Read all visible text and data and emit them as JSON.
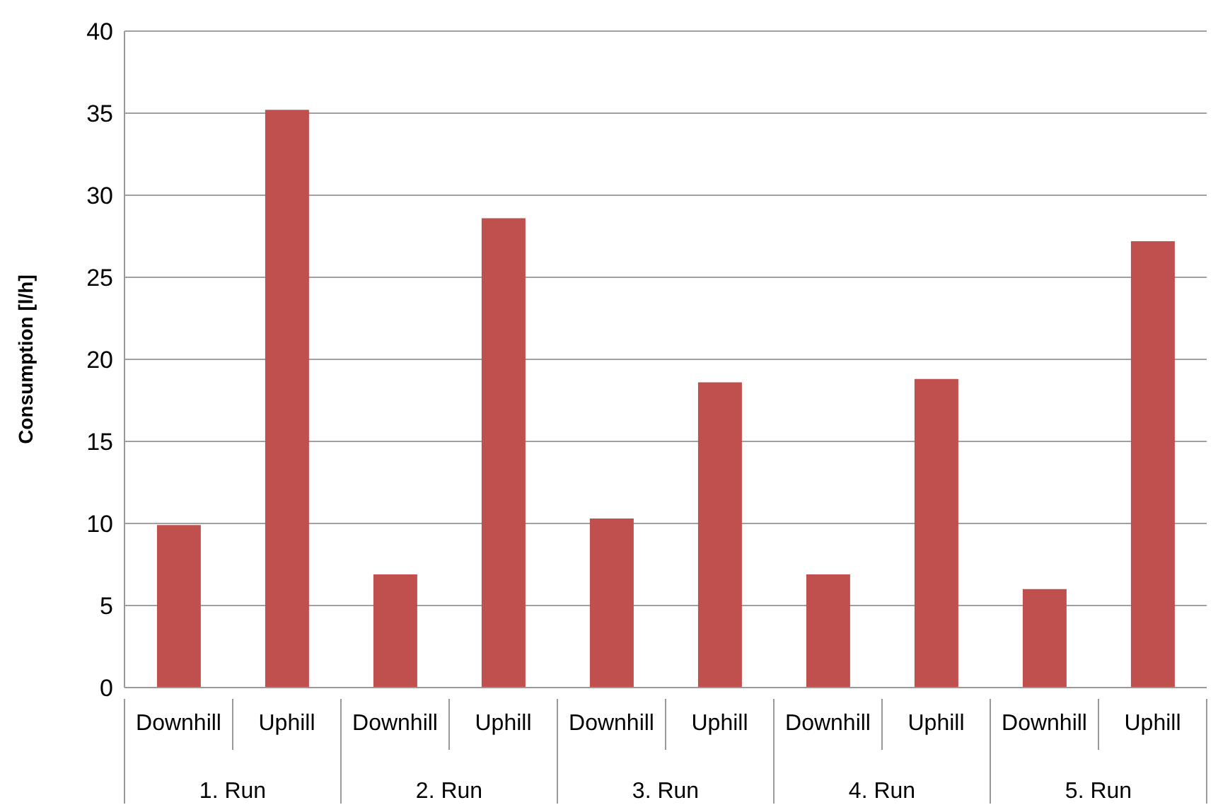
{
  "chart_data": {
    "type": "bar",
    "ylabel": "Consumption [l/h]",
    "categories": [
      "Downhill",
      "Uphill",
      "Downhill",
      "Uphill",
      "Downhill",
      "Uphill",
      "Downhill",
      "Uphill",
      "Downhill",
      "Uphill"
    ],
    "values": [
      9.9,
      35.2,
      6.9,
      28.6,
      10.3,
      18.6,
      6.9,
      18.8,
      6.0,
      27.2
    ],
    "color": "#c0504d",
    "ylim": [
      0,
      40
    ],
    "yticks": [
      0,
      5,
      10,
      15,
      20,
      25,
      30,
      35,
      40
    ],
    "grid": "y",
    "annotations": [
      "1. Run",
      "2. Run",
      "3. Run",
      "4. Run",
      "5. Run"
    ]
  }
}
